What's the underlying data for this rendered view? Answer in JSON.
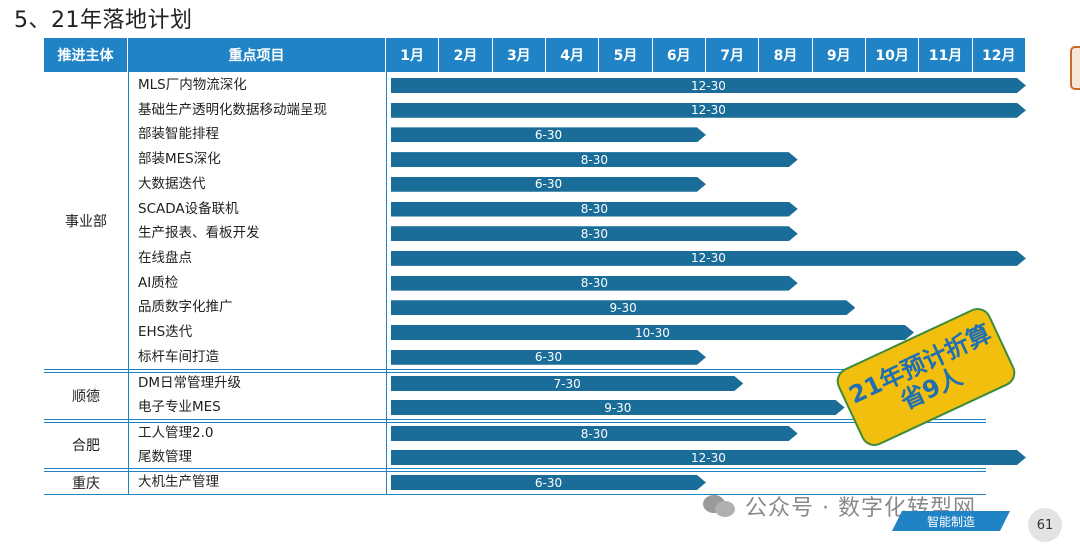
{
  "title": "5、21年落地计划",
  "header": {
    "col_subject": "推进主体",
    "col_project": "重点项目",
    "months": [
      "1月",
      "2月",
      "3月",
      "4月",
      "5月",
      "6月",
      "7月",
      "8月",
      "9月",
      "10月",
      "11月",
      "12月"
    ]
  },
  "groups": [
    {
      "name": "事业部"
    },
    {
      "name": "顺德"
    },
    {
      "name": "合肥"
    },
    {
      "name": "重庆"
    }
  ],
  "items": [
    {
      "label": "MLS厂内物流深化",
      "due": "12-30",
      "end_month": 12.0
    },
    {
      "label": "基础生产透明化数据移动端呈现",
      "due": "12-30",
      "end_month": 12.0
    },
    {
      "label": "部装智能排程",
      "due": "6-30",
      "end_month": 6.0
    },
    {
      "label": "部装MES深化",
      "due": "8-30",
      "end_month": 7.72
    },
    {
      "label": "大数据迭代",
      "due": "6-30",
      "end_month": 6.0
    },
    {
      "label": "SCADA设备联机",
      "due": "8-30",
      "end_month": 7.72
    },
    {
      "label": "生产报表、看板开发",
      "due": "8-30",
      "end_month": 7.72
    },
    {
      "label": "在线盘点",
      "due": "12-30",
      "end_month": 12.0
    },
    {
      "label": "AI质检",
      "due": "8-30",
      "end_month": 7.72
    },
    {
      "label": "品质数字化推广",
      "due": "9-30",
      "end_month": 8.8
    },
    {
      "label": "EHS迭代",
      "due": "10-30",
      "end_month": 9.9
    },
    {
      "label": "标杆车间打造",
      "due": "6-30",
      "end_month": 6.0
    },
    {
      "label": "DM日常管理升级",
      "due": "7-30",
      "end_month": 6.7
    },
    {
      "label": "电子专业MES",
      "due": "9-30",
      "end_month": 8.6
    },
    {
      "label": "工人管理2.0",
      "due": "8-30",
      "end_month": 7.72
    },
    {
      "label": "尾数管理",
      "due": "12-30",
      "end_month": 12.0
    },
    {
      "label": "大机生产管理",
      "due": "6-30",
      "end_month": 6.0
    }
  ],
  "badge": {
    "line1": "21年预计折算",
    "line2": "省9人"
  },
  "watermark": "公众号 · 数字化转型网",
  "tag": "智能制造",
  "page_number": "61",
  "colors": {
    "header": "#1f83c6",
    "bar": "#1a6d98",
    "badge": "#f2bf0f"
  }
}
